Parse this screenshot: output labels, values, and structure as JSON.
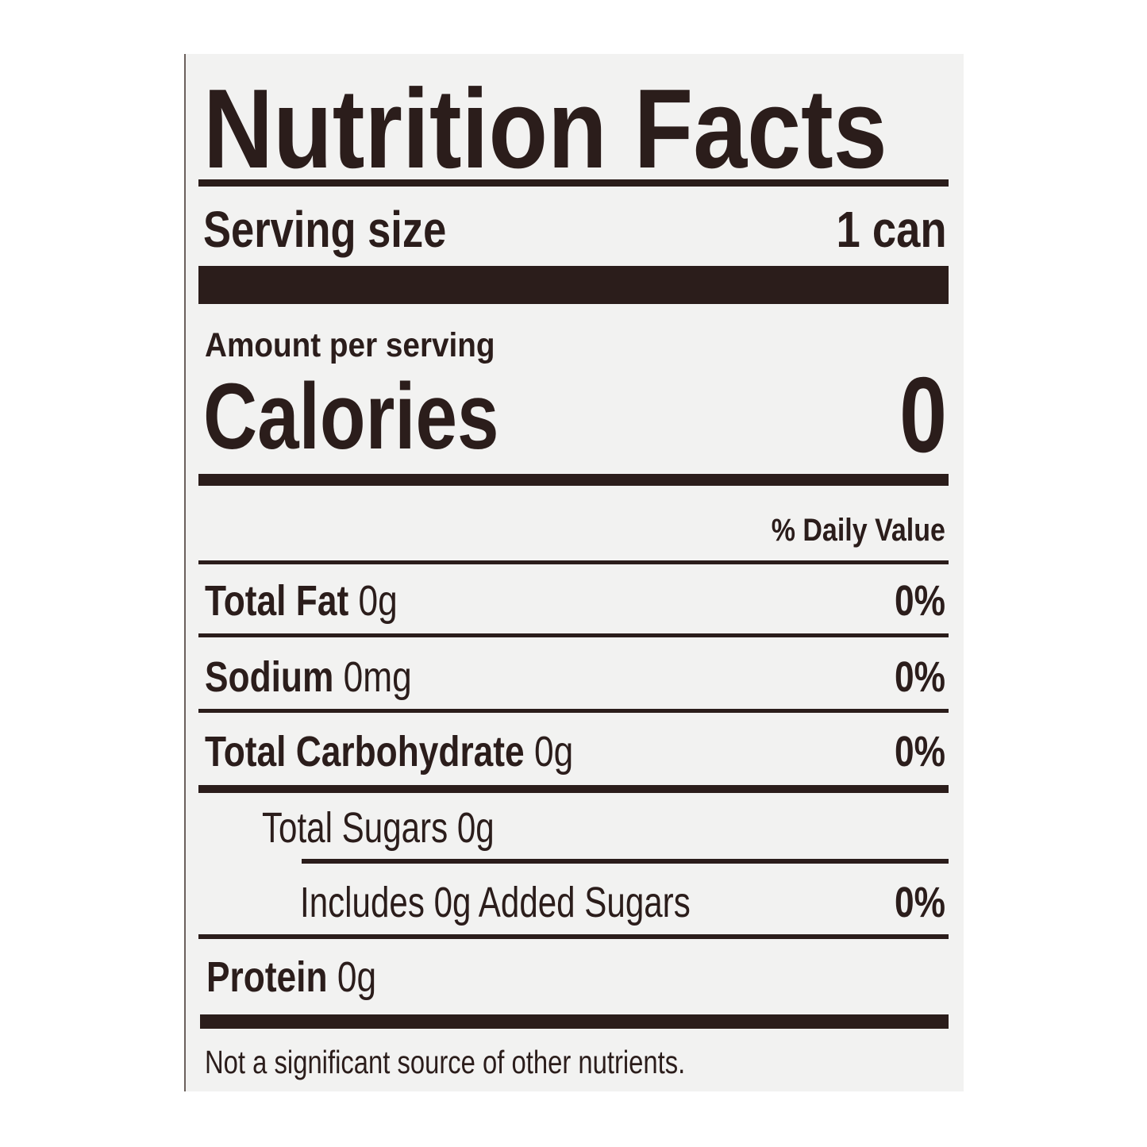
{
  "title": "Nutrition Facts",
  "serving": {
    "label": "Serving size",
    "value": "1 can"
  },
  "amount_per_serving": "Amount per serving",
  "calories": {
    "label": "Calories",
    "value": "0"
  },
  "daily_value_header": "% Daily Value",
  "nutrients": [
    {
      "name": "Total Fat",
      "amount": "0g",
      "dv": "0%"
    },
    {
      "name": "Sodium",
      "amount": "0mg",
      "dv": "0%"
    },
    {
      "name": "Total Carbohydrate",
      "amount": "0g",
      "dv": "0%"
    },
    {
      "name": "Total Sugars 0g"
    },
    {
      "name": "Includes 0g Added Sugars",
      "dv": "0%"
    },
    {
      "name": "Protein",
      "amount": "0g"
    }
  ],
  "footnote": "Not a significant source of other nutrients.",
  "colors": {
    "ink": "#2b1d1b",
    "paper": "#f2f2f1"
  }
}
